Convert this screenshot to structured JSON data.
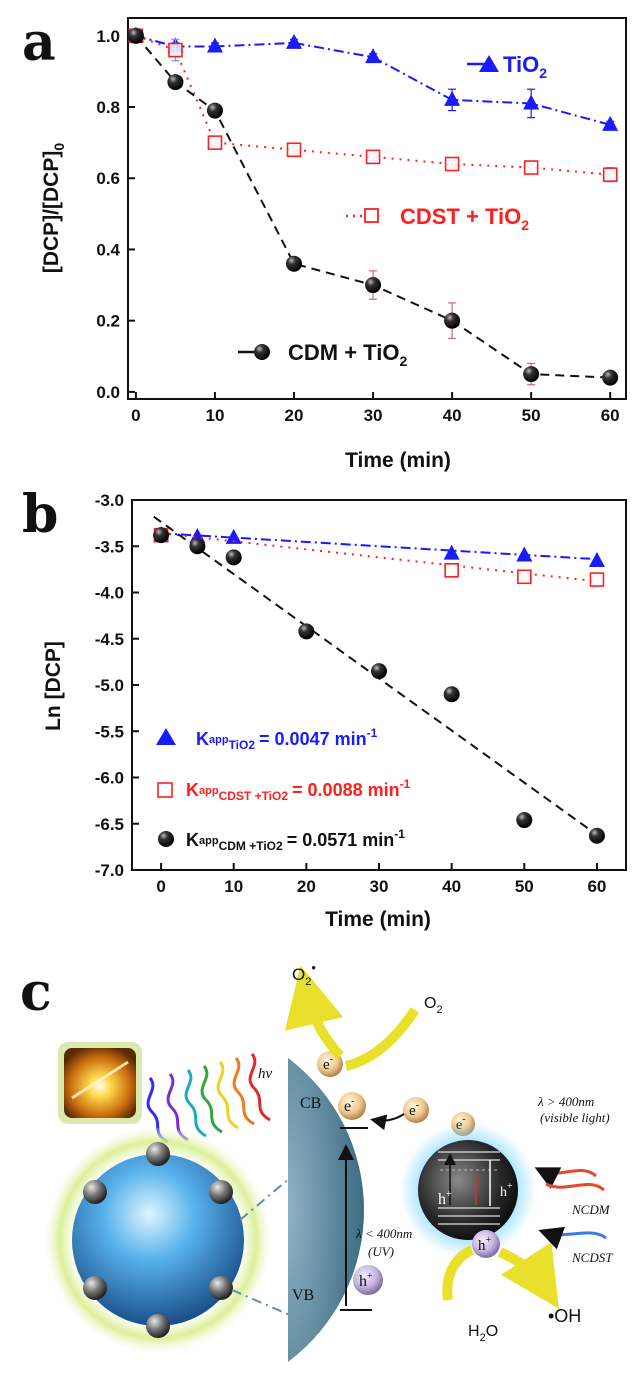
{
  "colors": {
    "tio2": "#1a1aff",
    "cdst": "#ff1f1f",
    "cdm": "#111111",
    "vb_shell": "#5f8fa3",
    "arrow_yellow": "#e8e02a"
  },
  "panel_letters": [
    "a",
    "b",
    "c"
  ],
  "chart_data": [
    {
      "type": "line",
      "panel": "a",
      "xlabel": "Time (min)",
      "ylabel": "[DCP]/[DCP]0",
      "xlim": [
        -1,
        62
      ],
      "ylim": [
        -0.02,
        1.05
      ],
      "x_ticks": [
        0,
        10,
        20,
        30,
        40,
        50,
        60
      ],
      "y_ticks": [
        "0.0",
        "0.2",
        "0.4",
        "0.6",
        "0.8",
        "1.0"
      ],
      "legend_placement": "inline",
      "series": [
        {
          "name": "TiO2",
          "marker": "triangle",
          "x": [
            0,
            5,
            10,
            20,
            30,
            40,
            50,
            60
          ],
          "y": [
            1.0,
            0.97,
            0.97,
            0.98,
            0.94,
            0.82,
            0.81,
            0.75
          ],
          "err": [
            0.01,
            0.01,
            0.01,
            0.01,
            0.01,
            0.03,
            0.04,
            0.01
          ]
        },
        {
          "name": "CDST + TiO2",
          "marker": "open-square",
          "x": [
            0,
            5,
            10,
            20,
            30,
            40,
            50,
            60
          ],
          "y": [
            1.0,
            0.96,
            0.7,
            0.68,
            0.66,
            0.64,
            0.63,
            0.61
          ],
          "err": [
            0.01,
            0.03,
            0.01,
            0.01,
            0.01,
            0.01,
            0.01,
            0.02
          ]
        },
        {
          "name": "CDM + TiO2",
          "marker": "sphere",
          "x": [
            0,
            5,
            10,
            20,
            30,
            40,
            50,
            60
          ],
          "y": [
            1.0,
            0.87,
            0.79,
            0.36,
            0.3,
            0.2,
            0.05,
            0.04
          ],
          "err": [
            0.01,
            0.01,
            0.01,
            0.01,
            0.04,
            0.05,
            0.03,
            0.01
          ]
        }
      ]
    },
    {
      "type": "scatter",
      "panel": "b",
      "xlabel": "Time (min)",
      "ylabel": "Ln [DCP]",
      "xlim": [
        -4,
        64
      ],
      "ylim": [
        -7.0,
        -3.0
      ],
      "x_ticks": [
        0,
        10,
        20,
        30,
        40,
        50,
        60
      ],
      "y_ticks": [
        "-3.0",
        "-3.5",
        "-4.0",
        "-4.5",
        "-5.0",
        "-5.5",
        "-6.0",
        "-6.5",
        "-7.0"
      ],
      "series": [
        {
          "name": "TiO2",
          "marker": "triangle",
          "x": [
            0,
            5,
            10,
            40,
            50,
            60
          ],
          "y": [
            -3.38,
            -3.4,
            -3.41,
            -3.58,
            -3.6,
            -3.66
          ],
          "fit": {
            "x": [
              0,
              60
            ],
            "y": [
              -3.36,
              -3.64
            ]
          },
          "k_label": "K",
          "k_sub": "app",
          "k_subsub": "TiO2",
          "k_value": "= 0.0047 min",
          "k_sup": "-1"
        },
        {
          "name": "CDST + TiO2",
          "marker": "open-square",
          "x": [
            0,
            40,
            50,
            60
          ],
          "y": [
            -3.38,
            -3.76,
            -3.83,
            -3.86
          ],
          "fit": {
            "x": [
              0,
              60
            ],
            "y": [
              -3.36,
              -3.88
            ]
          },
          "k_label": "K",
          "k_sub": "app",
          "k_subsub": "CDST +TiO2",
          "k_value": "= 0.0088 min",
          "k_sup": "-1"
        },
        {
          "name": "CDM + TiO2",
          "marker": "sphere",
          "x": [
            0,
            5,
            10,
            20,
            30,
            40,
            50,
            60
          ],
          "y": [
            -3.38,
            -3.5,
            -3.62,
            -4.42,
            -4.85,
            -5.1,
            -6.46,
            -6.63
          ],
          "fit": {
            "x": [
              -1,
              60
            ],
            "y": [
              -3.18,
              -6.62
            ]
          },
          "k_label": "K",
          "k_sub": "app",
          "k_subsub": "CDM +TiO2",
          "k_value": "= 0.0571 min",
          "k_sup": "-1"
        }
      ]
    }
  ],
  "legend_a": {
    "tio2": {
      "main": "TiO",
      "sub": "2"
    },
    "cdst": {
      "main": "CDST + TiO",
      "sub": "2"
    },
    "cdm": {
      "main": "CDM + TiO",
      "sub": "2"
    }
  },
  "schematic": {
    "o2_radical": {
      "main": "O",
      "sub": "2",
      "sup": "•"
    },
    "o2": {
      "main": "O",
      "sub": "2"
    },
    "hv": "hv",
    "cb": "CB",
    "vb": "VB",
    "electron": {
      "main": "e",
      "sup": "-"
    },
    "hole": {
      "main": "h",
      "sup": "+"
    },
    "visible": {
      "line1": "λ > 400nm",
      "line2": "(visible light)"
    },
    "uv": {
      "line1": "λ < 400nm",
      "line2": "(UV)"
    },
    "ncdm": "NCDM",
    "ncdst": "NCDST",
    "h2o": {
      "main": "H",
      "sub": "2",
      "rest": "O"
    },
    "oh": "•OH"
  }
}
